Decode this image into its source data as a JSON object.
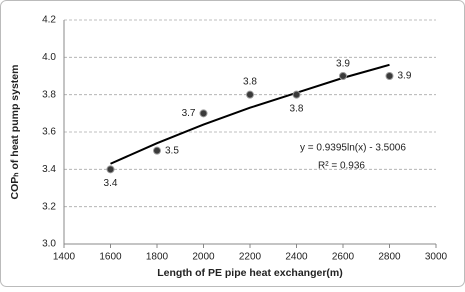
{
  "chart_data": {
    "type": "scatter",
    "x_label": "Length of PE pipe heat exchanger(m)",
    "y_label": "COPₕ of heat pump system",
    "x": [
      1600,
      1800,
      2000,
      2200,
      2400,
      2600,
      2800
    ],
    "series": [
      {
        "color": "#3a3a3a",
        "values": [
          3.4,
          3.5,
          3.7,
          3.8,
          3.8,
          3.9,
          3.9
        ]
      }
    ],
    "trendline": {
      "type": "line",
      "color": "#000000",
      "x": [
        1600,
        1800,
        2000,
        2200,
        2400,
        2600,
        2800
      ],
      "values": [
        3.43,
        3.54,
        3.64,
        3.73,
        3.81,
        3.89,
        3.96
      ]
    },
    "annotations": [
      "y = 0.9395ln(x) - 3.5006",
      "R² = 0.936"
    ],
    "xlim": [
      1400,
      3000
    ],
    "xticks": [
      1400,
      1600,
      1800,
      2000,
      2200,
      2400,
      2600,
      2800,
      3000
    ],
    "ylim": [
      3.0,
      4.2
    ],
    "yticks": [
      {
        "value": 3,
        "label": "3.0"
      },
      3.2,
      3.4,
      3.6,
      3.8,
      {
        "value": 4,
        "label": "4.0"
      },
      4.2
    ],
    "grid": true
  }
}
